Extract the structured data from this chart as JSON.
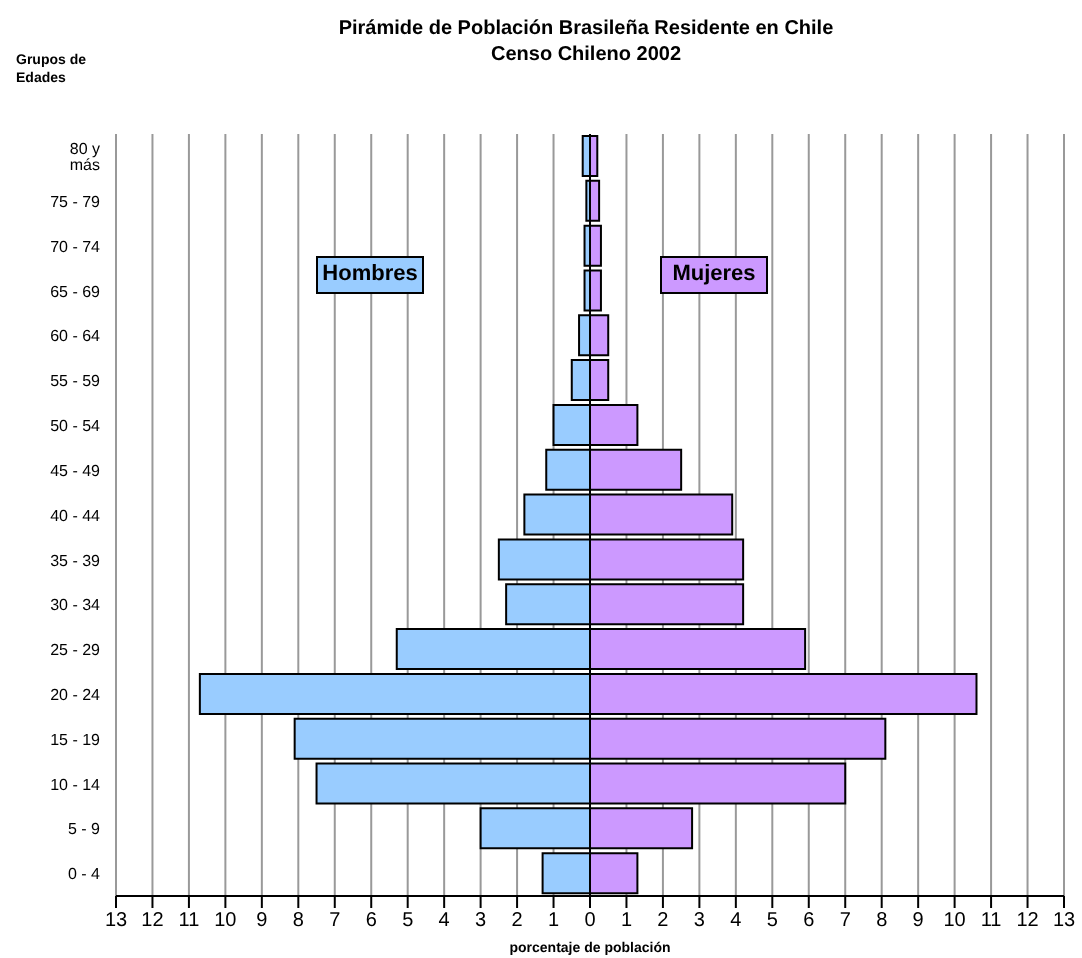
{
  "chart_data": {
    "type": "bar",
    "orientation": "horizontal",
    "stacked": true,
    "title": "Pirámide de Población Brasileña Residente en Chile",
    "subtitle": "Censo Chileno 2002",
    "xlabel": "porcentaje de población",
    "ylabel": "Grupos de Edades",
    "categories": [
      "80 y más",
      "75 - 79",
      "70 - 74",
      "65 - 69",
      "60 - 64",
      "55 - 59",
      "50 - 54",
      "45 - 49",
      "40 - 44",
      "35 - 39",
      "30 - 34",
      "25 - 29",
      "20 - 24",
      "15 - 19",
      "10 - 14",
      "5 - 9",
      "0 - 4"
    ],
    "series": [
      {
        "name": "Hombres",
        "color": "#99ccff",
        "values": [
          -0.2,
          -0.1,
          -0.15,
          -0.15,
          -0.3,
          -0.5,
          -1.0,
          -1.2,
          -1.8,
          -2.5,
          -2.3,
          -5.3,
          -10.7,
          -8.1,
          -7.5,
          -3.0,
          -1.3
        ]
      },
      {
        "name": "Mujeres",
        "color": "#cc99ff",
        "values": [
          0.2,
          0.25,
          0.3,
          0.3,
          0.5,
          0.5,
          1.3,
          2.5,
          3.9,
          4.2,
          4.2,
          5.9,
          10.6,
          8.1,
          7.0,
          2.8,
          1.3
        ]
      }
    ],
    "xlim": [
      -13,
      13
    ],
    "xticks": [
      {
        "value": -13,
        "label": "13"
      },
      {
        "value": -12,
        "label": "12"
      },
      {
        "value": -11,
        "label": "11"
      },
      {
        "value": -10,
        "label": "10"
      },
      {
        "value": -9,
        "label": "9"
      },
      {
        "value": -8,
        "label": "8"
      },
      {
        "value": -7,
        "label": "7"
      },
      {
        "value": -6,
        "label": "6"
      },
      {
        "value": -5,
        "label": "5"
      },
      {
        "value": -4,
        "label": "4"
      },
      {
        "value": -3,
        "label": "3"
      },
      {
        "value": -2,
        "label": "2"
      },
      {
        "value": -1,
        "label": "1"
      },
      0,
      1,
      2,
      3,
      4,
      5,
      6,
      7,
      8,
      9,
      10,
      11,
      12,
      13
    ],
    "grid": "x",
    "legend": "top"
  }
}
